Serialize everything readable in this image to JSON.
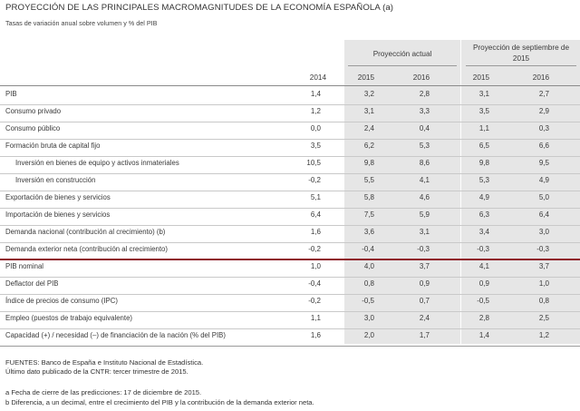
{
  "title": "PROYECCIÓN DE LAS PRINCIPALES MACROMAGNITUDES DE LA ECONOMÍA ESPAÑOLA (a)",
  "subtitle": "Tasas de variación anual sobre volumen y % del PIB",
  "headers": {
    "group_actual": "Proyección actual",
    "group_sept": "Proyección de septiembre de 2015",
    "year_2014": "2014",
    "year_2015a": "2015",
    "year_2016a": "2016",
    "year_2015b": "2015",
    "year_2016b": "2016"
  },
  "rows": [
    {
      "label": "PIB",
      "v": [
        "1,4",
        "3,2",
        "2,8",
        "3,1",
        "2,7"
      ]
    },
    {
      "label": "Consumo privado",
      "v": [
        "1,2",
        "3,1",
        "3,3",
        "3,5",
        "2,9"
      ]
    },
    {
      "label": "Consumo público",
      "v": [
        "0,0",
        "2,4",
        "0,4",
        "1,1",
        "0,3"
      ]
    },
    {
      "label": "Formación bruta de capital fijo",
      "v": [
        "3,5",
        "6,2",
        "5,3",
        "6,5",
        "6,6"
      ]
    },
    {
      "label": "Inversión en bienes de equipo y activos inmateriales",
      "v": [
        "10,5",
        "9,8",
        "8,6",
        "9,8",
        "9,5"
      ]
    },
    {
      "label": "Inversión en construcción",
      "v": [
        "-0,2",
        "5,5",
        "4,1",
        "5,3",
        "4,9"
      ]
    },
    {
      "label": "Exportación de bienes y servicios",
      "v": [
        "5,1",
        "5,8",
        "4,6",
        "4,9",
        "5,0"
      ]
    },
    {
      "label": "Importación de bienes y servicios",
      "v": [
        "6,4",
        "7,5",
        "5,9",
        "6,3",
        "6,4"
      ]
    },
    {
      "label": "Demanda nacional (contribución al crecimiento) (b)",
      "v": [
        "1,6",
        "3,6",
        "3,1",
        "3,4",
        "3,0"
      ]
    },
    {
      "label": "Demanda exterior neta (contribución al crecimiento)",
      "v": [
        "-0,2",
        "-0,4",
        "-0,3",
        "-0,3",
        "-0,3"
      ]
    },
    {
      "label": "PIB nominal",
      "v": [
        "1,0",
        "4,0",
        "3,7",
        "4,1",
        "3,7"
      ]
    },
    {
      "label": "Deflactor del PIB",
      "v": [
        "-0,4",
        "0,8",
        "0,9",
        "0,9",
        "1,0"
      ]
    },
    {
      "label": "Índice de precios de consumo (IPC)",
      "v": [
        "-0,2",
        "-0,5",
        "0,7",
        "-0,5",
        "0,8"
      ]
    },
    {
      "label": "Empleo (puestos de trabajo equivalente)",
      "v": [
        "1,1",
        "3,0",
        "2,4",
        "2,8",
        "2,5"
      ]
    },
    {
      "label": "Capacidad (+) / necesidad (–) de financiación de la nación (% del PIB)",
      "v": [
        "1,6",
        "2,0",
        "1,7",
        "1,4",
        "1,2"
      ]
    }
  ],
  "notes": {
    "sources": "FUENTES: Banco de España e Instituto Nacional de Estadística.",
    "last_data": "Último dato publicado de la CNTR: tercer trimestre de 2015.",
    "note_a": "a  Fecha de cierre de las predicciones: 17 de diciembre de 2015.",
    "note_b": "b  Diferencia, a un decimal, entre el crecimiento del PIB y la contribución de la demanda exterior neta."
  },
  "colors": {
    "accent_rule": "#8f1c2a",
    "shaded_columns": "#e6e6e6"
  }
}
